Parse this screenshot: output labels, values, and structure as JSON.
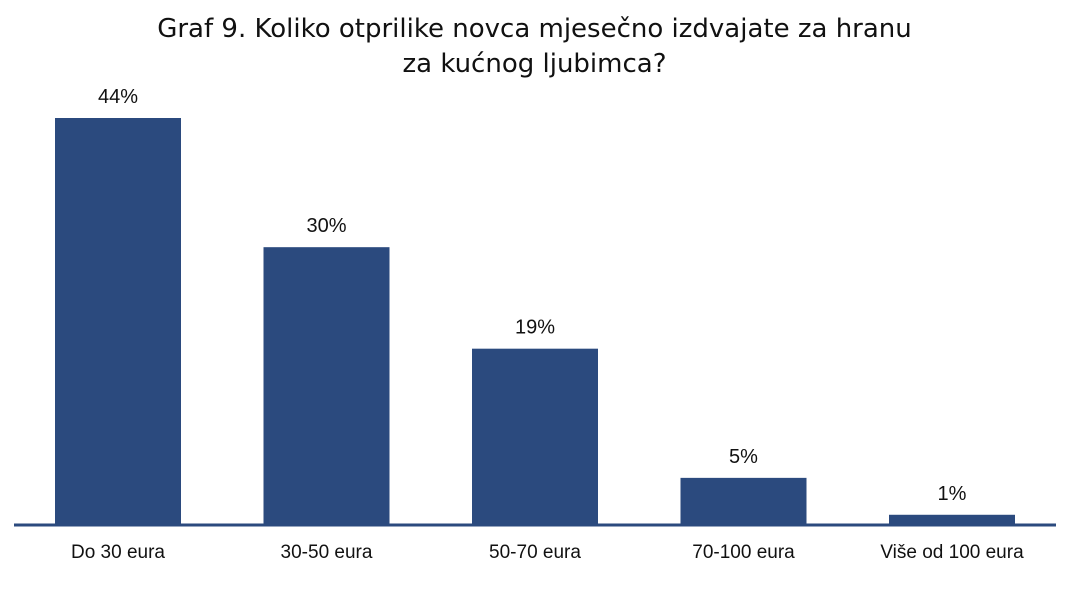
{
  "chart_data": {
    "type": "bar",
    "title_lines": [
      "Graf 9. Koliko otprilike novca mjesečno izdvajate za hranu",
      "za kućnog ljubimca?"
    ],
    "categories": [
      "Do 30 eura",
      "30-50 eura",
      "50-70 eura",
      "70-100 eura",
      "Više od 100 eura"
    ],
    "values": [
      44,
      30,
      19,
      5,
      1
    ],
    "value_labels": [
      "44%",
      "30%",
      "19%",
      "5%",
      "1%"
    ],
    "ylim": [
      0,
      44
    ],
    "grid": false,
    "legend": "none",
    "bar_color": "#2b4a7e",
    "axis_color": "#2b4a7e"
  }
}
